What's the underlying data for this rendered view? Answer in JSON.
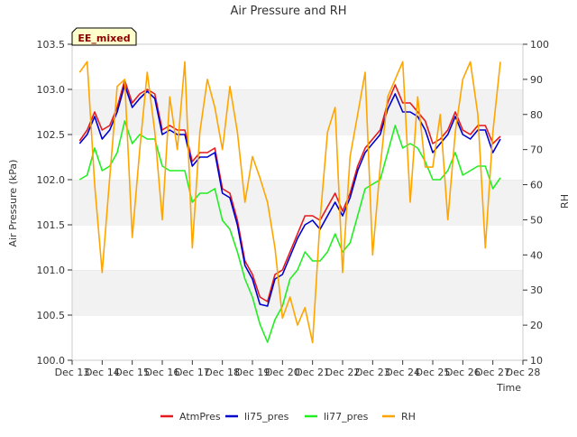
{
  "chart_data": {
    "type": "line",
    "title": "Air Pressure and RH",
    "annotation": "EE_mixed",
    "xlabel": "Time",
    "ylabel_left": "Air Pressure (kPa)",
    "ylabel_right": "RH",
    "x_ticks": [
      "Dec 13",
      "Dec 14",
      "Dec 15",
      "Dec 16",
      "Dec 17",
      "Dec 18",
      "Dec 19",
      "Dec 20",
      "Dec 21",
      "Dec 22",
      "Dec 23",
      "Dec 24",
      "Dec 25",
      "Dec 26",
      "Dec 27",
      "Dec 28"
    ],
    "xlim": [
      13,
      28
    ],
    "ylim_left": [
      100.0,
      103.5
    ],
    "yticks_left": [
      "100.0",
      "100.5",
      "101.0",
      "101.5",
      "102.0",
      "102.5",
      "103.0",
      "103.5"
    ],
    "ylim_right": [
      10,
      100
    ],
    "yticks_right": [
      "10",
      "20",
      "30",
      "40",
      "50",
      "60",
      "70",
      "80",
      "90",
      "100"
    ],
    "grid": "horizontal bands",
    "legend_position": "bottom",
    "x": [
      13.25,
      13.5,
      13.75,
      14.0,
      14.25,
      14.5,
      14.75,
      15.0,
      15.25,
      15.5,
      15.75,
      16.0,
      16.25,
      16.5,
      16.75,
      17.0,
      17.25,
      17.5,
      17.75,
      18.0,
      18.25,
      18.5,
      18.75,
      19.0,
      19.25,
      19.5,
      19.75,
      20.0,
      20.25,
      20.5,
      20.75,
      21.0,
      21.25,
      21.5,
      21.75,
      22.0,
      22.25,
      22.5,
      22.75,
      23.0,
      23.25,
      23.5,
      23.75,
      24.0,
      24.25,
      24.5,
      24.75,
      25.0,
      25.25,
      25.5,
      25.75,
      26.0,
      26.25,
      26.5,
      26.75,
      27.0,
      27.25
    ],
    "series": [
      {
        "name": "AtmPres",
        "color": "#e41a1c",
        "axis": "left",
        "values": [
          102.43,
          102.55,
          102.75,
          102.55,
          102.6,
          102.8,
          103.1,
          102.85,
          102.95,
          103.0,
          102.95,
          102.55,
          102.6,
          102.55,
          102.55,
          102.2,
          102.3,
          102.3,
          102.35,
          101.9,
          101.85,
          101.55,
          101.1,
          100.95,
          100.7,
          100.65,
          100.95,
          101.0,
          101.2,
          101.4,
          101.6,
          101.6,
          101.55,
          101.7,
          101.85,
          101.65,
          101.85,
          102.15,
          102.35,
          102.45,
          102.55,
          102.85,
          103.05,
          102.85,
          102.85,
          102.75,
          102.65,
          102.4,
          102.45,
          102.55,
          102.75,
          102.55,
          102.5,
          102.6,
          102.6,
          102.4,
          102.48
        ]
      },
      {
        "name": "li75_pres",
        "color": "#0000cd",
        "axis": "left",
        "values": [
          102.4,
          102.5,
          102.7,
          102.45,
          102.55,
          102.75,
          103.05,
          102.8,
          102.9,
          102.98,
          102.9,
          102.5,
          102.55,
          102.5,
          102.5,
          102.15,
          102.25,
          102.25,
          102.3,
          101.85,
          101.8,
          101.5,
          101.05,
          100.9,
          100.62,
          100.6,
          100.9,
          100.95,
          101.15,
          101.35,
          101.5,
          101.55,
          101.45,
          101.6,
          101.75,
          101.6,
          101.8,
          102.1,
          102.3,
          102.4,
          102.5,
          102.78,
          102.95,
          102.75,
          102.75,
          102.7,
          102.55,
          102.3,
          102.4,
          102.5,
          102.7,
          102.5,
          102.45,
          102.55,
          102.55,
          102.3,
          102.45
        ]
      },
      {
        "name": "li77_pres",
        "color": "#22ee22",
        "axis": "left",
        "values": [
          102.0,
          102.05,
          102.35,
          102.1,
          102.15,
          102.3,
          102.65,
          102.4,
          102.5,
          102.45,
          102.45,
          102.15,
          102.1,
          102.1,
          102.1,
          101.75,
          101.85,
          101.85,
          101.9,
          101.55,
          101.45,
          101.2,
          100.9,
          100.7,
          100.4,
          100.2,
          100.45,
          100.6,
          100.9,
          101.0,
          101.2,
          101.1,
          101.1,
          101.2,
          101.4,
          101.2,
          101.3,
          101.6,
          101.9,
          101.95,
          102.0,
          102.3,
          102.6,
          102.35,
          102.4,
          102.35,
          102.2,
          102.0,
          102.0,
          102.1,
          102.3,
          102.05,
          102.1,
          102.15,
          102.15,
          101.9,
          102.02
        ]
      },
      {
        "name": "RH",
        "color": "#ffa500",
        "axis": "right",
        "values": [
          92,
          95,
          60,
          35,
          62,
          88,
          90,
          45,
          70,
          92,
          75,
          50,
          85,
          70,
          95,
          42,
          75,
          90,
          82,
          70,
          88,
          75,
          55,
          68,
          62,
          55,
          42,
          22,
          28,
          20,
          25,
          15,
          50,
          75,
          82,
          35,
          68,
          80,
          92,
          40,
          65,
          85,
          90,
          95,
          55,
          85,
          65,
          65,
          80,
          50,
          75,
          90,
          95,
          80,
          42,
          75,
          95
        ]
      }
    ]
  }
}
